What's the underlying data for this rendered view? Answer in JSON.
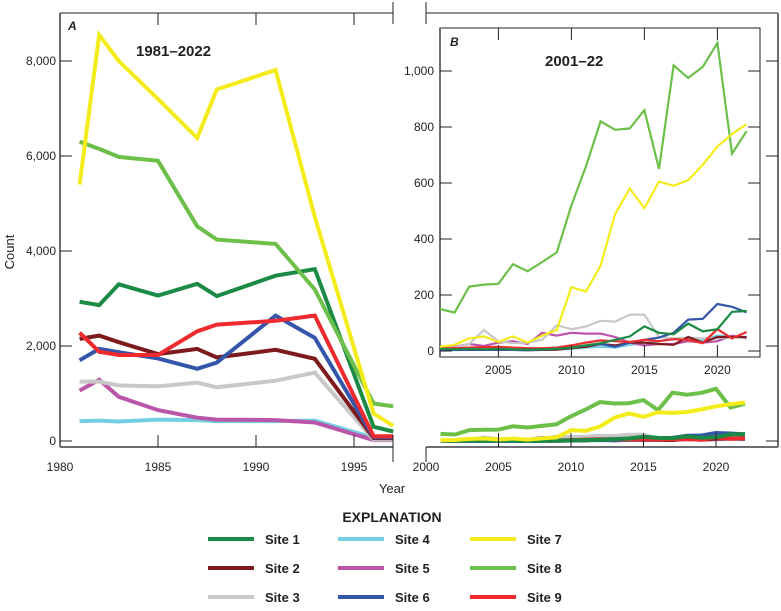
{
  "chart_data": [
    {
      "id": "A",
      "type": "line",
      "panel_label": "A",
      "period_label": "1981–2022",
      "xlabel": "Year",
      "ylabel": "Count",
      "xlim": [
        1980,
        1997
      ],
      "ylim": [
        0,
        8800
      ],
      "xticks": [
        1980,
        1985,
        1990,
        1995
      ],
      "xtick_labels": [
        "1980",
        "1985",
        "1990",
        "1995"
      ],
      "yticks": [
        0,
        2000,
        4000,
        6000,
        8000
      ],
      "ytick_labels": [
        "0",
        "2,000",
        "4,000",
        "6,000",
        "8,000"
      ],
      "grid": false,
      "x": [
        1981,
        1982,
        1983,
        1985,
        1987,
        1988,
        1991,
        1993,
        1996,
        1997
      ],
      "series": [
        {
          "name": "Site 1",
          "values": [
            2930,
            2860,
            3300,
            3060,
            3310,
            3050,
            3480,
            3620,
            300,
            200
          ]
        },
        {
          "name": "Site 2",
          "values": [
            2150,
            2220,
            2080,
            1830,
            1940,
            1760,
            1920,
            1730,
            60,
            60
          ]
        },
        {
          "name": "Site 3",
          "values": [
            1250,
            1250,
            1170,
            1150,
            1230,
            1130,
            1270,
            1440,
            30,
            30
          ]
        },
        {
          "name": "Site 4",
          "values": [
            420,
            430,
            410,
            450,
            440,
            420,
            420,
            430,
            70,
            60
          ]
        },
        {
          "name": "Site 5",
          "values": [
            1060,
            1290,
            930,
            650,
            490,
            450,
            440,
            390,
            20,
            20
          ]
        },
        {
          "name": "Site 6",
          "values": [
            1700,
            1940,
            1870,
            1740,
            1520,
            1650,
            2640,
            2170,
            80,
            80
          ]
        },
        {
          "name": "Site 7",
          "values": [
            5400,
            8550,
            8000,
            7200,
            6380,
            7400,
            7810,
            4720,
            580,
            320
          ]
        },
        {
          "name": "Site 8",
          "values": [
            6300,
            6150,
            5980,
            5900,
            4520,
            4240,
            4150,
            3190,
            790,
            730
          ]
        },
        {
          "name": "Site 9",
          "values": [
            2280,
            1880,
            1810,
            1810,
            2310,
            2450,
            2530,
            2640,
            100,
            100
          ]
        }
      ]
    },
    {
      "id": "B-full",
      "type": "line",
      "panel_label": "B",
      "xlim": [
        2000,
        2023
      ],
      "ylim": [
        0,
        8800
      ],
      "xticks": [
        2000,
        2005,
        2010,
        2015,
        2020
      ],
      "xtick_labels": [
        "2000",
        "2005",
        "2010",
        "2015",
        "2020"
      ],
      "grid": false,
      "x": [
        2001,
        2002,
        2003,
        2004,
        2005,
        2006,
        2007,
        2008,
        2009,
        2010,
        2011,
        2012,
        2013,
        2014,
        2015,
        2016,
        2017,
        2018,
        2019,
        2020,
        2021,
        2022
      ],
      "note": "same values as inset, plotted at panel A scale"
    },
    {
      "id": "B-inset",
      "type": "line",
      "panel_label": "B",
      "period_label": "2001–22",
      "xlim": [
        2001,
        2023
      ],
      "ylim": [
        0,
        1150
      ],
      "xticks": [
        2005,
        2010,
        2015,
        2020
      ],
      "xtick_labels": [
        "2005",
        "2010",
        "2015",
        "2020"
      ],
      "yticks": [
        0,
        200,
        400,
        600,
        800,
        1000
      ],
      "ytick_labels": [
        "0",
        "200",
        "400",
        "600",
        "800",
        "1,000"
      ],
      "grid": false,
      "x": [
        2001,
        2002,
        2003,
        2004,
        2005,
        2006,
        2007,
        2008,
        2009,
        2010,
        2011,
        2012,
        2013,
        2014,
        2015,
        2016,
        2017,
        2018,
        2019,
        2020,
        2021,
        2022
      ],
      "series": [
        {
          "name": "Site 1",
          "values": [
            8,
            6,
            8,
            6,
            8,
            6,
            5,
            6,
            8,
            12,
            20,
            28,
            40,
            52,
            88,
            65,
            60,
            98,
            70,
            78,
            140,
            143
          ]
        },
        {
          "name": "Site 2",
          "values": [
            5,
            4,
            4,
            4,
            5,
            4,
            3,
            4,
            5,
            10,
            15,
            25,
            20,
            30,
            30,
            25,
            22,
            50,
            30,
            50,
            50,
            50
          ]
        },
        {
          "name": "Site 3",
          "values": [
            10,
            12,
            25,
            75,
            35,
            28,
            30,
            40,
            92,
            78,
            88,
            108,
            105,
            130,
            130,
            50,
            45,
            48,
            45,
            45,
            50,
            48
          ]
        },
        {
          "name": "Site 4",
          "values": [
            3,
            3,
            4,
            4,
            4,
            4,
            3,
            4,
            5,
            8,
            12,
            15,
            12,
            22,
            28,
            35,
            45,
            42,
            38,
            55,
            52,
            48
          ]
        },
        {
          "name": "Site 5",
          "values": [
            8,
            15,
            25,
            18,
            30,
            35,
            25,
            65,
            55,
            65,
            62,
            62,
            50,
            30,
            20,
            25,
            25,
            35,
            30,
            35,
            55,
            45
          ]
        },
        {
          "name": "Site 6",
          "values": [
            5,
            4,
            5,
            4,
            5,
            4,
            3,
            5,
            8,
            12,
            20,
            25,
            15,
            30,
            40,
            48,
            65,
            112,
            115,
            168,
            158,
            138
          ]
        },
        {
          "name": "Site 7",
          "values": [
            15,
            22,
            45,
            52,
            32,
            52,
            30,
            55,
            75,
            228,
            212,
            305,
            490,
            580,
            510,
            605,
            590,
            610,
            665,
            730,
            775,
            810
          ]
        },
        {
          "name": "Site 8",
          "values": [
            150,
            137,
            230,
            237,
            240,
            310,
            285,
            318,
            352,
            520,
            660,
            820,
            790,
            795,
            860,
            650,
            1020,
            975,
            1015,
            1100,
            705,
            785
          ]
        },
        {
          "name": "Site 9",
          "values": [
            10,
            10,
            12,
            14,
            15,
            12,
            10,
            10,
            12,
            20,
            30,
            38,
            35,
            32,
            40,
            35,
            42,
            40,
            28,
            78,
            45,
            68
          ]
        }
      ]
    }
  ],
  "legend": {
    "title": "EXPLANATION",
    "placement": "bottom-center",
    "items": [
      {
        "label": "Site 1",
        "color": "#1a8a44"
      },
      {
        "label": "Site 2",
        "color": "#7d1a1e"
      },
      {
        "label": "Site 3",
        "color": "#c8c8c8"
      },
      {
        "label": "Site 4",
        "color": "#72d0e0"
      },
      {
        "label": "Site 5",
        "color": "#bb55aa"
      },
      {
        "label": "Site 6",
        "color": "#3355aa"
      },
      {
        "label": "Site 7",
        "color": "#f4ec1a"
      },
      {
        "label": "Site 8",
        "color": "#6cc04a"
      },
      {
        "label": "Site 9",
        "color": "#ee2a2e"
      }
    ]
  }
}
